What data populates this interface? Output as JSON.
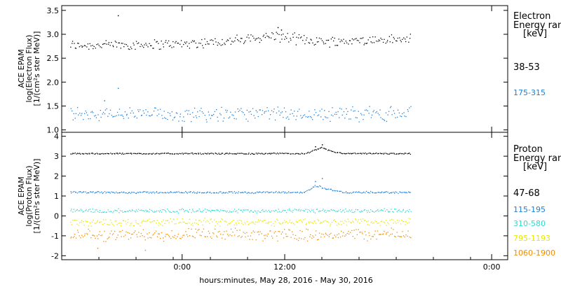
{
  "chart_data": [
    {
      "type": "scatter",
      "panel": "electron",
      "ylabel_lines": [
        "ACE EPAM",
        "log(Electron Flux)",
        "[1/(cm²s ster MeV)]"
      ],
      "ylim": [
        0.95,
        3.6
      ],
      "yticks": [
        1.0,
        1.5,
        2.0,
        2.5,
        3.0,
        3.5
      ],
      "ytick_labels": [
        "1.0",
        "1.5",
        "2.0",
        "2.5",
        "3.0",
        "3.5"
      ],
      "legend_title": [
        "Electron",
        "Energy ran",
        "[keV]"
      ],
      "series": [
        {
          "name": "38-53",
          "color": "#000000",
          "base": 2.8,
          "spread": 0.13,
          "trend": [
            [
              0.0,
              2.78
            ],
            [
              0.3,
              2.8
            ],
            [
              0.5,
              2.88
            ],
            [
              0.6,
              2.98
            ],
            [
              0.65,
              2.92
            ],
            [
              0.75,
              2.86
            ],
            [
              1.0,
              2.9
            ]
          ],
          "spikes": [
            [
              0.14,
              3.4
            ],
            [
              0.61,
              3.15
            ],
            [
              0.62,
              3.1
            ]
          ]
        },
        {
          "name": "175-315",
          "color": "#1f7fd6",
          "base": 1.35,
          "spread": 0.18,
          "trend": [
            [
              0.0,
              1.33
            ],
            [
              0.5,
              1.34
            ],
            [
              1.0,
              1.35
            ]
          ],
          "spikes": [
            [
              0.14,
              1.88
            ],
            [
              0.1,
              1.62
            ]
          ]
        }
      ]
    },
    {
      "type": "scatter",
      "panel": "proton",
      "ylabel_lines": [
        "ACE EPAM",
        "log(Proton Flux)",
        "[1/(cm²s ster MeV)]"
      ],
      "ylim": [
        -2.2,
        4.2
      ],
      "yticks": [
        -2,
        -1,
        0,
        1,
        2,
        3,
        4
      ],
      "ytick_labels": [
        "-2",
        "-1",
        "0",
        "1",
        "2",
        "3",
        "4"
      ],
      "legend_title": [
        "Proton",
        "Energy ran",
        "[keV]"
      ],
      "series": [
        {
          "name": "47-68",
          "color": "#000000",
          "base": 3.15,
          "spread": 0.04,
          "trend": [
            [
              0.0,
              3.15
            ],
            [
              0.69,
              3.15
            ],
            [
              0.74,
              3.45
            ],
            [
              0.76,
              3.3
            ],
            [
              0.8,
              3.15
            ],
            [
              1.0,
              3.15
            ]
          ],
          "spikes": [
            [
              0.74,
              3.6
            ],
            [
              0.72,
              3.5
            ]
          ]
        },
        {
          "name": "115-195",
          "color": "#1f7fd6",
          "base": 1.2,
          "spread": 0.06,
          "trend": [
            [
              0.0,
              1.2
            ],
            [
              0.69,
              1.2
            ],
            [
              0.72,
              1.55
            ],
            [
              0.75,
              1.4
            ],
            [
              0.8,
              1.2
            ],
            [
              1.0,
              1.2
            ]
          ],
          "spikes": [
            [
              0.74,
              1.9
            ],
            [
              0.72,
              1.75
            ]
          ]
        },
        {
          "name": "310-580",
          "color": "#30d8d0",
          "base": 0.28,
          "spread": 0.12,
          "trend": [
            [
              0.0,
              0.28
            ],
            [
              1.0,
              0.28
            ]
          ],
          "spikes": []
        },
        {
          "name": "795-1193",
          "color": "#e8e800",
          "base": -0.3,
          "spread": 0.22,
          "trend": [
            [
              0.0,
              -0.3
            ],
            [
              1.0,
              -0.28
            ]
          ],
          "spikes": []
        },
        {
          "name": "1060-1900",
          "color": "#f08c00",
          "base": -0.9,
          "spread": 0.35,
          "trend": [
            [
              0.0,
              -0.95
            ],
            [
              1.0,
              -0.9
            ]
          ],
          "spikes": [
            [
              0.22,
              -1.7
            ],
            [
              0.08,
              -1.6
            ]
          ]
        }
      ]
    }
  ],
  "x_axis": {
    "label": "hours:minutes, May 28, 2016 - May 30, 2016",
    "ticks": [
      {
        "label": "0:00",
        "t": 0.27
      },
      {
        "label": "12:00",
        "t": 0.5
      },
      {
        "label": "0:00",
        "t": 0.964
      }
    ]
  }
}
